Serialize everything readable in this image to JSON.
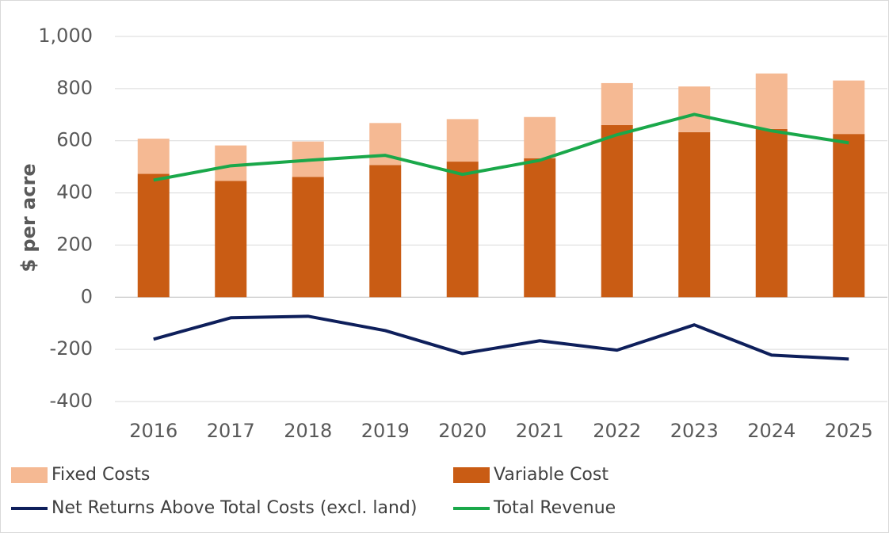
{
  "chart_data": {
    "type": "bar",
    "y_label": "$ per acre",
    "categories": [
      "2016",
      "2017",
      "2018",
      "2019",
      "2020",
      "2021",
      "2022",
      "2023",
      "2024",
      "2025"
    ],
    "series": [
      {
        "name": "Fixed Costs",
        "type": "bar",
        "color": "#f5b993",
        "values": [
          135,
          136,
          136,
          161,
          163,
          158,
          161,
          175,
          213,
          205
        ]
      },
      {
        "name": "Variable Cost",
        "type": "bar",
        "color": "#c95c14",
        "values": [
          473,
          446,
          461,
          507,
          520,
          533,
          660,
          633,
          645,
          626
        ]
      },
      {
        "name": "Net Returns Above Total Costs (excl. land)",
        "type": "line",
        "color": "#0e1f5b",
        "values": [
          -161,
          -79,
          -73,
          -128,
          -216,
          -167,
          -203,
          -106,
          -222,
          -237
        ]
      },
      {
        "name": "Total Revenue",
        "type": "line",
        "color": "#1aa84a",
        "values": [
          449,
          504,
          525,
          544,
          471,
          525,
          623,
          701,
          638,
          592
        ]
      }
    ],
    "ylim": [
      -400,
      1000
    ],
    "yticks": [
      -400,
      -200,
      0,
      200,
      400,
      600,
      800,
      {
        "value": 1000,
        "label": "1,000"
      }
    ],
    "grid": true
  }
}
